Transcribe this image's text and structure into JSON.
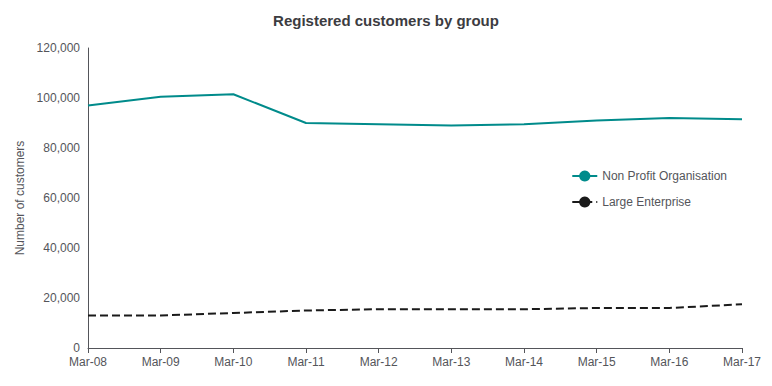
{
  "chart_data": {
    "type": "line",
    "title": "Registered customers by group",
    "ylabel": "Number of customers",
    "categories": [
      "Mar-08",
      "Mar-09",
      "Mar-10",
      "Mar-11",
      "Mar-12",
      "Mar-13",
      "Mar-14",
      "Mar-15",
      "Mar-16",
      "Mar-17"
    ],
    "series": [
      {
        "name": "Non Profit Organisation",
        "color": "#008B8B",
        "line_style": "solid",
        "values": [
          97000,
          100500,
          101500,
          90000,
          89500,
          89000,
          89500,
          91000,
          92000,
          91500
        ]
      },
      {
        "name": "Large Enterprise",
        "color": "#1a1a1a",
        "line_style": "dashed",
        "values": [
          13000,
          13000,
          14000,
          15000,
          15500,
          15500,
          15500,
          16000,
          16000,
          17500
        ]
      }
    ],
    "ylim": [
      0,
      120000
    ],
    "yticks": [
      0,
      {
        "value": 20000,
        "label": "20,000"
      },
      {
        "value": 40000,
        "label": "40,000"
      },
      {
        "value": 60000,
        "label": "60,000"
      },
      {
        "value": 80000,
        "label": "80,000"
      },
      {
        "value": 100000,
        "label": "100,000"
      },
      {
        "value": 120000,
        "label": "120,000"
      }
    ],
    "grid": false,
    "legend": "upper right"
  }
}
